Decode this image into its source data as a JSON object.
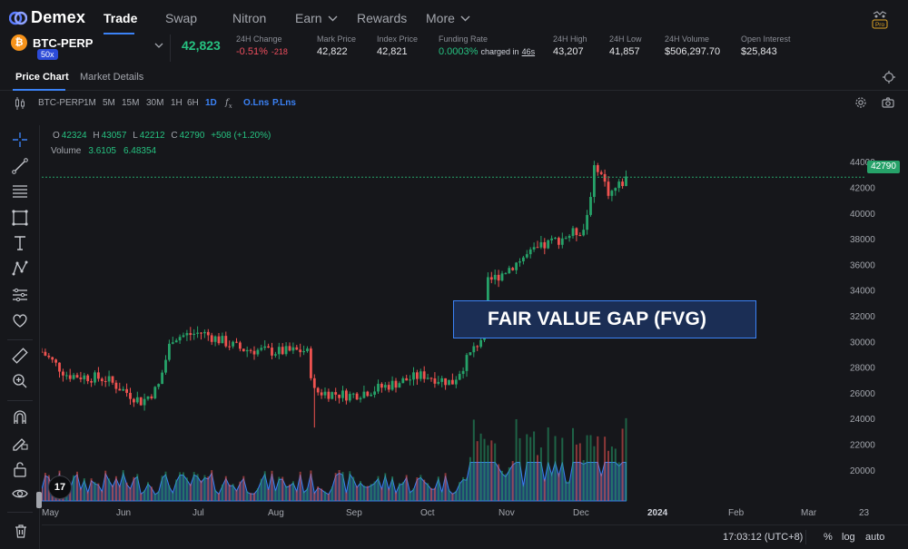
{
  "app": {
    "logo_text": "Demex",
    "pro_badge": "Pro"
  },
  "nav": {
    "items": [
      {
        "label": "Trade",
        "active": true
      },
      {
        "label": "Swap"
      },
      {
        "label": "Nitron"
      },
      {
        "label": "Earn",
        "dropdown": true
      },
      {
        "label": "Rewards"
      },
      {
        "label": "More",
        "dropdown": true
      }
    ]
  },
  "ticker": {
    "pair": "BTC-PERP",
    "leverage": "50x",
    "last_price": "42,823",
    "stats": [
      {
        "label": "24H Change",
        "value": "-0.51%",
        "sub": "-218"
      },
      {
        "label": "Mark Price",
        "value": "42,822"
      },
      {
        "label": "Index Price",
        "value": "42,821"
      },
      {
        "label": "Funding Rate",
        "value": "0.0003%",
        "charged_prefix": "charged in",
        "charged_time": "46s"
      },
      {
        "label": "24H High",
        "value": "43,207"
      },
      {
        "label": "24H Low",
        "value": "41,857"
      },
      {
        "label": "24H Volume",
        "value": "$506,297.70"
      },
      {
        "label": "Open Interest",
        "value": "$25,843"
      }
    ]
  },
  "tabs": [
    {
      "label": "Price Chart",
      "active": true
    },
    {
      "label": "Market Details"
    }
  ],
  "chart_toolbar": {
    "symbol": "BTC-PERP",
    "intervals": [
      "1M",
      "5M",
      "15M",
      "30M",
      "1H",
      "6H",
      "1D"
    ],
    "selected_interval": "1D",
    "fx_label": "f",
    "fx_sub": "x",
    "overlays": [
      "O.Lns",
      "P.Lns"
    ]
  },
  "legend": {
    "ohlc": [
      {
        "k": "O",
        "v": "42324"
      },
      {
        "k": "H",
        "v": "43057"
      },
      {
        "k": "L",
        "v": "42212"
      },
      {
        "k": "C",
        "v": "42790"
      }
    ],
    "change": "+508 (+1.20%)",
    "volume_label": "Volume",
    "volume_values": [
      "3.6105",
      "6.48354"
    ]
  },
  "price_axis": {
    "ticks": [
      "44000",
      "42000",
      "40000",
      "38000",
      "36000",
      "34000",
      "32000",
      "30000",
      "28000",
      "26000",
      "24000",
      "22000",
      "20000"
    ],
    "current_tag": "42790"
  },
  "time_axis": {
    "ticks": [
      "May",
      "Jun",
      "Jul",
      "Aug",
      "Sep",
      "Oct",
      "Nov",
      "Dec",
      "2024",
      "Feb",
      "Mar",
      "23"
    ]
  },
  "annotation": {
    "text": "FAIR VALUE GAP (FVG)"
  },
  "bottom_bar": {
    "clock": "17:03:12 (UTC+8)",
    "percent": "%",
    "log": "log",
    "auto": "auto"
  },
  "tv_logo": "17",
  "colors": {
    "up": "#26a269",
    "down": "#ef5350",
    "accent": "#3b82f6",
    "volume_area": "#2f6fd6"
  },
  "icons": {
    "left_toolbar": [
      "crosshair-icon",
      "trend-line-icon",
      "fib-lines-icon",
      "rectangle-icon",
      "text-icon",
      "pattern-icon",
      "measure-lines-icon",
      "heart-icon",
      "ruler-icon",
      "zoom-icon",
      "magnet-icon",
      "pencil-lock-icon",
      "lock-icon",
      "eye-icon",
      "trash-icon"
    ]
  },
  "chart_data": {
    "type": "candlestick",
    "symbol": "BTC-PERP",
    "interval": "1D",
    "y_range": [
      19000,
      45000
    ],
    "x": [
      "May",
      "Jun",
      "Jul",
      "Aug",
      "Sep",
      "Oct",
      "Nov",
      "Dec",
      "2024",
      "Feb",
      "Mar"
    ],
    "close_path": [
      {
        "x": "May",
        "y": 29200
      },
      {
        "x": "May",
        "y": 27400
      },
      {
        "x": "Jun",
        "y": 27100
      },
      {
        "x": "Jun",
        "y": 25300
      },
      {
        "x": "Jun",
        "y": 26400
      },
      {
        "x": "Jul",
        "y": 30300
      },
      {
        "x": "Jul",
        "y": 30700
      },
      {
        "x": "Jul",
        "y": 29400
      },
      {
        "x": "Aug",
        "y": 29200
      },
      {
        "x": "Aug",
        "y": 29300
      },
      {
        "x": "Aug",
        "y": 26100
      },
      {
        "x": "Sep",
        "y": 25800
      },
      {
        "x": "Sep",
        "y": 26300
      },
      {
        "x": "Oct",
        "y": 27400
      },
      {
        "x": "Oct",
        "y": 26800
      },
      {
        "x": "Oct",
        "y": 30300
      },
      {
        "x": "Nov",
        "y": 34500
      },
      {
        "x": "Nov",
        "y": 36500
      },
      {
        "x": "Nov",
        "y": 37700
      },
      {
        "x": "Dec",
        "y": 38800
      },
      {
        "x": "Dec",
        "y": 44000
      },
      {
        "x": "Dec",
        "y": 41500
      },
      {
        "x": "Dec",
        "y": 42790
      }
    ],
    "current_price": 42790,
    "fvg_range": [
      30000,
      32600
    ],
    "volume_series": "bars + blue area at chart bottom"
  }
}
